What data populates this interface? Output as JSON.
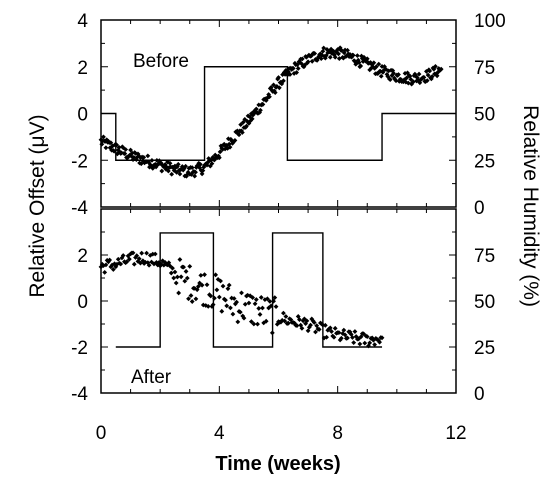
{
  "chart_data": [
    {
      "type": "scatter",
      "panel": "Before",
      "panel_label": "Before",
      "xlabel": "Time (weeks)",
      "ylabel": "Relative Offset (μV)",
      "y2label": "Relative Humidity (%)",
      "xlim": [
        0,
        12
      ],
      "ylim": [
        -4,
        4
      ],
      "y2lim": [
        0,
        100
      ],
      "yticks": [
        -4,
        -2,
        0,
        2,
        4
      ],
      "y2ticks": [
        0,
        25,
        50,
        75,
        100
      ],
      "series": [
        {
          "kind": "offset_points",
          "axis": "left",
          "x": [
            0.0,
            0.5,
            1.0,
            1.5,
            2.0,
            2.5,
            3.0,
            3.5,
            4.0,
            4.5,
            5.0,
            5.5,
            6.0,
            6.5,
            7.0,
            7.5,
            8.0,
            8.5,
            9.0,
            9.5,
            10.0,
            10.5,
            11.0,
            11.5
          ],
          "y": [
            -1.2,
            -1.5,
            -1.8,
            -2.0,
            -2.2,
            -2.4,
            -2.5,
            -2.3,
            -1.7,
            -1.0,
            -0.3,
            0.5,
            1.3,
            1.9,
            2.3,
            2.6,
            2.6,
            2.4,
            2.1,
            1.8,
            1.6,
            1.5,
            1.6,
            1.9
          ]
        },
        {
          "kind": "humidity_step",
          "axis": "right",
          "x": [
            0.0,
            0.5,
            0.5,
            3.5,
            3.5,
            6.3,
            6.3,
            9.5,
            9.5,
            12.0
          ],
          "y": [
            50,
            50,
            25,
            25,
            75,
            75,
            25,
            25,
            50,
            50
          ]
        }
      ]
    },
    {
      "type": "scatter",
      "panel": "After",
      "panel_label": "After",
      "xlabel": "Time (weeks)",
      "ylabel": "Relative Offset (μV)",
      "y2label": "Relative Humidity (%)",
      "xlim": [
        0,
        12
      ],
      "ylim": [
        -4,
        4
      ],
      "y2lim": [
        0,
        100
      ],
      "yticks": [
        -4,
        -2,
        0,
        2
      ],
      "y2ticks": [
        0,
        25,
        50,
        75
      ],
      "xticks": [
        0,
        4,
        8,
        12
      ],
      "series": [
        {
          "kind": "offset_points",
          "axis": "left",
          "x": [
            0.0,
            0.5,
            1.0,
            1.5,
            2.0,
            2.5,
            3.0,
            3.5,
            4.0,
            4.5,
            5.0,
            5.5,
            6.0,
            6.5,
            7.0,
            7.5,
            8.0,
            8.5,
            9.0,
            9.5
          ],
          "y": [
            1.5,
            1.6,
            1.8,
            1.9,
            1.7,
            1.2,
            0.8,
            0.6,
            0.3,
            -0.1,
            -0.3,
            -0.5,
            -0.7,
            -0.9,
            -1.0,
            -1.3,
            -1.5,
            -1.6,
            -1.7,
            -1.6
          ]
        },
        {
          "kind": "humidity_step",
          "axis": "right",
          "x": [
            0.5,
            2.0,
            2.0,
            3.8,
            3.8,
            5.8,
            5.8,
            7.5,
            7.5,
            9.5
          ],
          "y": [
            25,
            25,
            87,
            87,
            25,
            25,
            87,
            87,
            25,
            25
          ]
        }
      ]
    }
  ],
  "labels": {
    "xlabel": "Time (weeks)",
    "ylabel": "Relative Offset (μV)",
    "y2label": "Relative Humidity (%)",
    "before": "Before",
    "after": "After"
  }
}
